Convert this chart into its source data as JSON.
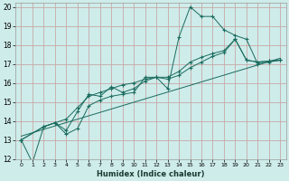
{
  "xlabel": "Humidex (Indice chaleur)",
  "xlim": [
    -0.5,
    23.5
  ],
  "ylim": [
    12,
    20.2
  ],
  "yticks": [
    12,
    13,
    14,
    15,
    16,
    17,
    18,
    19,
    20
  ],
  "xticks": [
    0,
    1,
    2,
    3,
    4,
    5,
    6,
    7,
    8,
    9,
    10,
    11,
    12,
    13,
    14,
    15,
    16,
    17,
    18,
    19,
    20,
    21,
    22,
    23
  ],
  "bg_color": "#ceecea",
  "grid_color": "#c8a8a8",
  "line_color": "#1a6b5e",
  "series1_x": [
    0,
    1,
    2,
    3,
    4,
    5,
    6,
    7,
    8,
    9,
    10,
    11,
    12,
    13,
    14,
    15,
    16,
    17,
    18,
    19,
    20,
    21,
    22,
    23
  ],
  "series1_y": [
    13.0,
    11.8,
    13.7,
    13.9,
    13.3,
    13.6,
    14.8,
    15.1,
    15.3,
    15.4,
    15.5,
    16.3,
    16.3,
    15.7,
    18.4,
    20.0,
    19.5,
    19.5,
    18.8,
    18.5,
    18.3,
    17.0,
    17.1,
    17.2
  ],
  "series2_x": [
    0,
    2,
    3,
    4,
    5,
    6,
    7,
    8,
    9,
    10,
    11,
    12,
    13,
    14,
    15,
    16,
    17,
    18,
    19,
    20,
    21,
    22,
    23
  ],
  "series2_y": [
    13.0,
    13.7,
    13.9,
    14.1,
    14.7,
    15.3,
    15.5,
    15.7,
    15.9,
    16.0,
    16.2,
    16.3,
    16.2,
    16.4,
    16.8,
    17.1,
    17.4,
    17.6,
    18.3,
    17.2,
    17.1,
    17.15,
    17.2
  ],
  "trend_x": [
    0,
    23
  ],
  "trend_y": [
    13.2,
    17.3
  ],
  "series3_x": [
    0,
    2,
    3,
    4,
    5,
    6,
    7,
    8,
    9,
    10,
    11,
    12,
    13,
    14,
    15,
    16,
    17,
    18,
    19,
    20,
    21,
    22,
    23
  ],
  "series3_y": [
    13.0,
    13.7,
    13.9,
    13.5,
    14.5,
    15.4,
    15.3,
    15.8,
    15.5,
    15.7,
    16.1,
    16.3,
    16.3,
    16.6,
    17.1,
    17.35,
    17.55,
    17.7,
    18.3,
    17.2,
    17.1,
    17.15,
    17.2
  ]
}
